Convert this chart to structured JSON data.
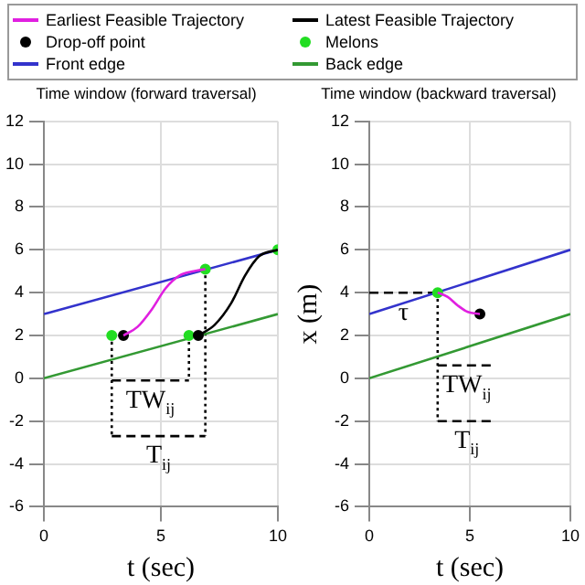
{
  "chart_data": [
    {
      "type": "line",
      "title": "Time window (forward traversal)",
      "xlabel": "t (sec)",
      "xlim": [
        0,
        10
      ],
      "xticks": [
        0,
        5,
        10
      ],
      "ylim": [
        -6,
        12
      ],
      "yticks": [
        -6,
        -4,
        -2,
        0,
        2,
        4,
        6,
        8,
        10,
        12
      ],
      "grid": true,
      "legend": "top",
      "line_style": "solid",
      "annotations": [
        "TW$_{ij}$",
        "T$_{ij}$"
      ],
      "series": [
        {
          "name": "Earliest Feasible Trajectory",
          "color": "#e020e0",
          "x": [
            3.4,
            4.0,
            4.6,
            5.2,
            5.8,
            6.4,
            6.9
          ],
          "values": [
            2,
            2.4,
            3.2,
            4.2,
            4.8,
            5.0,
            5.1
          ]
        },
        {
          "name": "Latest Feasible Trajectory",
          "color": "#000000",
          "x": [
            6.6,
            7.3,
            8.0,
            8.6,
            9.2,
            10
          ],
          "values": [
            2,
            2.5,
            3.5,
            4.8,
            5.7,
            6.0
          ]
        },
        {
          "name": "Drop-off point",
          "type": "scatter",
          "color": "#000000",
          "x": [
            3.4,
            6.6
          ],
          "values": [
            2,
            2
          ]
        },
        {
          "name": "Melons",
          "type": "scatter",
          "color": "#22dd22",
          "x": [
            2.9,
            6.2,
            6.9,
            10
          ],
          "values": [
            2,
            2,
            5.1,
            6
          ]
        },
        {
          "name": "Front edge",
          "color": "#3333cc",
          "x": [
            0,
            10
          ],
          "values": [
            3,
            6
          ]
        },
        {
          "name": "Back edge",
          "color": "#339933",
          "x": [
            0,
            10
          ],
          "values": [
            0,
            3
          ]
        },
        {
          "line_style": "dotted",
          "color": "#000000",
          "x": [
            2.9,
            2.9
          ],
          "values": [
            2,
            -2.7
          ]
        },
        {
          "line_style": "dotted",
          "color": "#000000",
          "x": [
            6.2,
            6.2
          ],
          "values": [
            2,
            -0.1
          ]
        },
        {
          "line_style": "dotted",
          "color": "#000000",
          "x": [
            6.9,
            6.9
          ],
          "values": [
            5.1,
            -2.7
          ]
        },
        {
          "line_style": "dashed",
          "color": "#000000",
          "x": [
            2.9,
            6.2
          ],
          "values": [
            -0.1,
            -0.1
          ]
        },
        {
          "line_style": "dashed",
          "color": "#000000",
          "x": [
            2.9,
            6.9
          ],
          "values": [
            -2.7,
            -2.7
          ]
        }
      ]
    },
    {
      "type": "line",
      "title": "Time window (backward traversal)",
      "xlabel": "t (sec)",
      "ylabel": "x (m)",
      "xlim": [
        0,
        10
      ],
      "xticks": [
        0,
        5,
        10
      ],
      "ylim": [
        -6,
        12
      ],
      "yticks": [
        -6,
        -4,
        -2,
        0,
        2,
        4,
        6,
        8,
        10,
        12
      ],
      "grid": true,
      "legend": false,
      "line_style": "solid",
      "annotations": [
        "τ",
        "TW$_{ij}$",
        "T$_{ij}$"
      ],
      "series": [
        {
          "color": "#e020e0",
          "x": [
            3.4,
            3.9,
            4.4,
            4.9,
            5.5
          ],
          "values": [
            4,
            3.8,
            3.4,
            3.1,
            3.0
          ]
        },
        {
          "type": "scatter",
          "color": "#000000",
          "x": [
            5.5
          ],
          "values": [
            3.0
          ]
        },
        {
          "type": "scatter",
          "color": "#22dd22",
          "x": [
            3.4
          ],
          "values": [
            4
          ]
        },
        {
          "color": "#3333cc",
          "x": [
            0,
            10
          ],
          "values": [
            3,
            6
          ]
        },
        {
          "color": "#339933",
          "x": [
            0,
            10
          ],
          "values": [
            0,
            3
          ]
        },
        {
          "line_style": "dashed",
          "color": "#000000",
          "x": [
            0,
            3.4
          ],
          "values": [
            4,
            4
          ]
        },
        {
          "line_style": "dotted",
          "color": "#000000",
          "x": [
            3.4,
            3.4
          ],
          "values": [
            4,
            -2
          ]
        },
        {
          "line_style": "dashed",
          "color": "#000000",
          "x": [
            3.4,
            6.3
          ],
          "values": [
            0.6,
            0.6
          ]
        },
        {
          "line_style": "dashed",
          "color": "#000000",
          "x": [
            3.4,
            6.3
          ],
          "values": [
            -2,
            -2
          ]
        }
      ]
    }
  ]
}
